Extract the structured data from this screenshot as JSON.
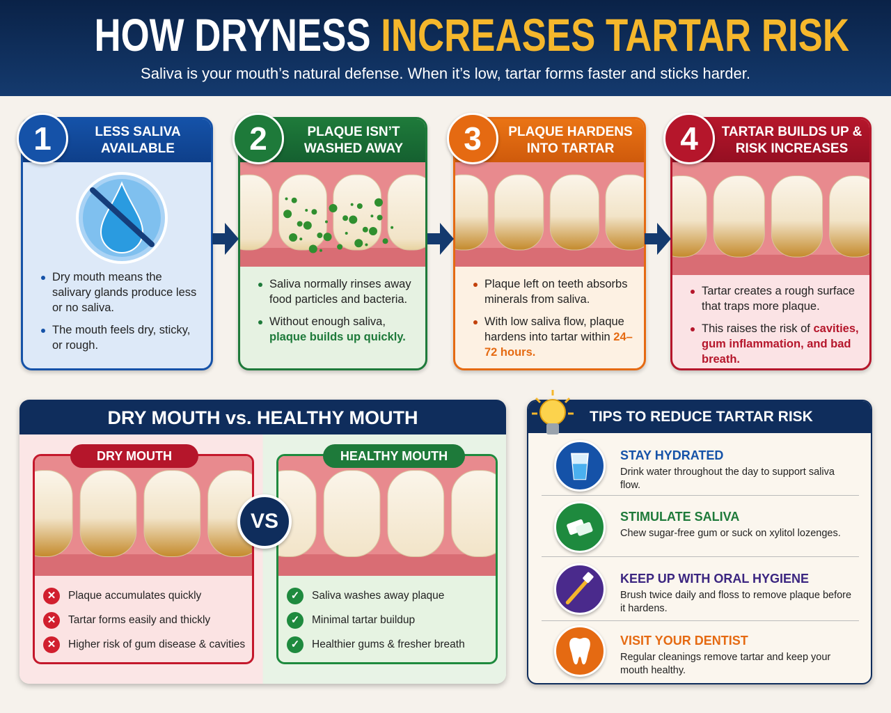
{
  "header": {
    "title_white": "HOW DRYNESS",
    "title_yellow": "INCREASES TARTAR RISK",
    "subtitle": "Saliva is your mouth’s natural defense. When it’s low, tartar forms faster and sticks harder."
  },
  "colors": {
    "navy": "#0f2d5c",
    "yellow": "#f5b72c",
    "blue": "#1552a8",
    "green": "#1e7a3a",
    "orange": "#e56a12",
    "red": "#b5162b"
  },
  "steps": [
    {
      "number": "1",
      "title1": "LESS SALIVA",
      "title2": "AVAILABLE",
      "icon": "no-water-drop-icon",
      "bullets": [
        "Dry mouth means the salivary glands produce less or no saliva.",
        "The mouth feels dry, sticky, or rough."
      ]
    },
    {
      "number": "2",
      "title1": "PLAQUE ISN’T",
      "title2": "WASHED AWAY",
      "bullets": [
        "Saliva normally rinses away food particles and bacteria."
      ],
      "bullet2_plain": "Without enough saliva, ",
      "bullet2_highlight": "plaque builds up quickly."
    },
    {
      "number": "3",
      "title1": "PLAQUE HARDENS",
      "title2": "INTO TARTAR",
      "bullets": [
        "Plaque left on teeth absorbs minerals from saliva."
      ],
      "bullet2_plain": "With low saliva flow, plaque hardens into tartar within ",
      "bullet2_highlight": "24–72 hours."
    },
    {
      "number": "4",
      "title1": "TARTAR BUILDS UP &",
      "title2": "RISK INCREASES",
      "bullets": [
        "Tartar creates a rough surface that traps more plaque."
      ],
      "bullet2_plain": "This raises the risk of ",
      "bullet2_highlight": "cavities, gum inflammation, and bad breath."
    }
  ],
  "comparison": {
    "title": "DRY MOUTH vs. HEALTHY MOUTH",
    "vs": "VS",
    "dry": {
      "label": "DRY MOUTH",
      "items": [
        "Plaque accumulates quickly",
        "Tartar forms easily and thickly",
        "Higher risk of gum disease & cavities"
      ]
    },
    "healthy": {
      "label": "HEALTHY MOUTH",
      "items": [
        "Saliva washes away plaque",
        "Minimal tartar buildup",
        "Healthier gums & fresher breath"
      ]
    }
  },
  "tips": {
    "title": "TIPS TO REDUCE TARTAR RISK",
    "items": [
      {
        "title": "STAY HYDRATED",
        "desc": "Drink water throughout the day to support saliva flow.",
        "icon": "water-glass-icon",
        "color": "#1552a8"
      },
      {
        "title": "STIMULATE SALIVA",
        "desc": "Chew sugar-free gum or suck on xylitol lozenges.",
        "icon": "gum-icon",
        "color": "#1e7a3a"
      },
      {
        "title": "KEEP UP WITH ORAL HYGIENE",
        "desc": "Brush twice daily and floss to remove plaque before it hardens.",
        "icon": "toothbrush-icon",
        "color": "#4a2a8c"
      },
      {
        "title": "VISIT YOUR DENTIST",
        "desc": "Regular cleanings remove tartar and keep your mouth healthy.",
        "icon": "tooth-icon",
        "color": "#e56a12"
      }
    ]
  }
}
